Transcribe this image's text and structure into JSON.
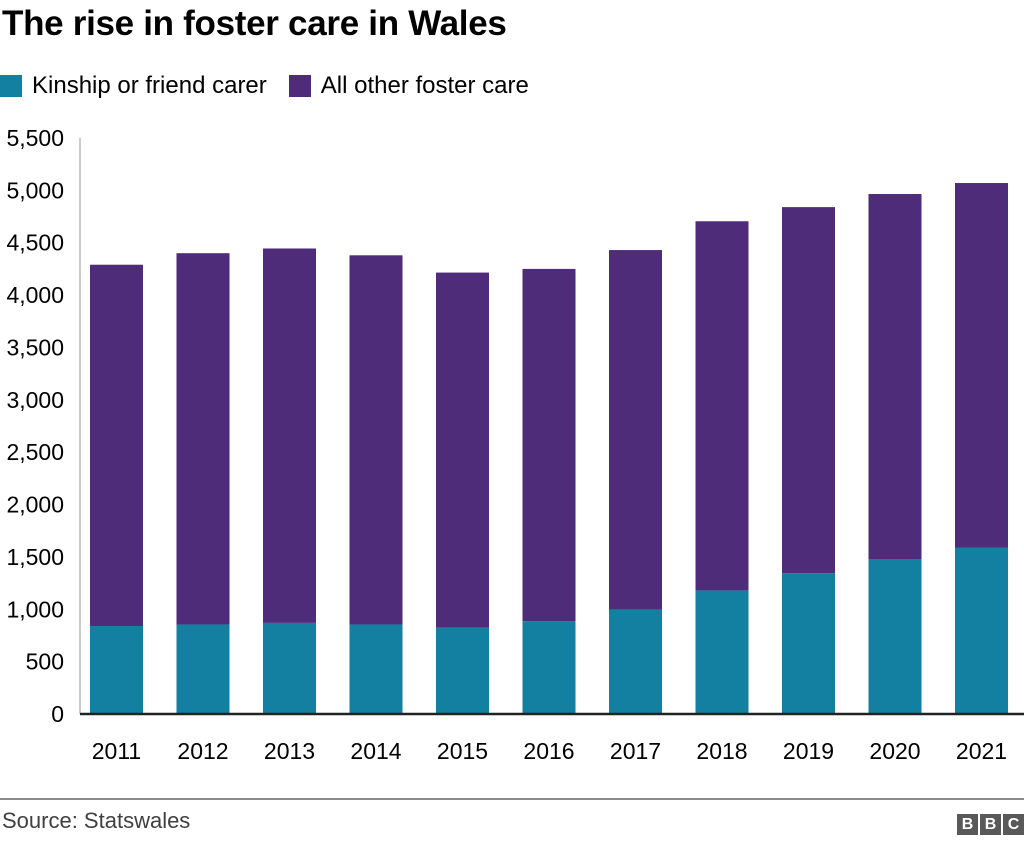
{
  "title": "The rise in foster care in Wales",
  "legend": [
    {
      "label": "Kinship or friend carer",
      "color": "#1380A1"
    },
    {
      "label": "All other foster care",
      "color": "#4F2C79"
    }
  ],
  "footer": {
    "source": "Source: Statswales",
    "logo_letters": [
      "B",
      "B",
      "C"
    ]
  },
  "chart_data": {
    "type": "bar",
    "stacked": true,
    "title": "The rise in foster care in Wales",
    "xlabel": "",
    "ylabel": "",
    "categories": [
      "2011",
      "2012",
      "2013",
      "2014",
      "2015",
      "2016",
      "2017",
      "2018",
      "2019",
      "2020",
      "2021"
    ],
    "series": [
      {
        "name": "Kinship or friend carer",
        "color": "#1380A1",
        "values": [
          840,
          855,
          870,
          855,
          825,
          885,
          995,
          1180,
          1345,
          1480,
          1590
        ]
      },
      {
        "name": "All other foster care",
        "color": "#4F2C79",
        "values": [
          3450,
          3545,
          3575,
          3525,
          3390,
          3365,
          3435,
          3525,
          3495,
          3485,
          3480
        ]
      }
    ],
    "totals": [
      4290,
      4400,
      4445,
      4380,
      4215,
      4250,
      4430,
      4705,
      4840,
      4965,
      5070
    ],
    "ylim": [
      0,
      5500
    ],
    "yticks": [
      0,
      500,
      1000,
      1500,
      2000,
      2500,
      3000,
      3500,
      4000,
      4500,
      5000,
      5500
    ],
    "ytick_labels": [
      "0",
      "500",
      "1,000",
      "1,500",
      "2,000",
      "2,500",
      "3,000",
      "3,500",
      "4,000",
      "4,500",
      "5,000",
      "5,500"
    ],
    "grid": false,
    "legend_position": "top-left"
  }
}
